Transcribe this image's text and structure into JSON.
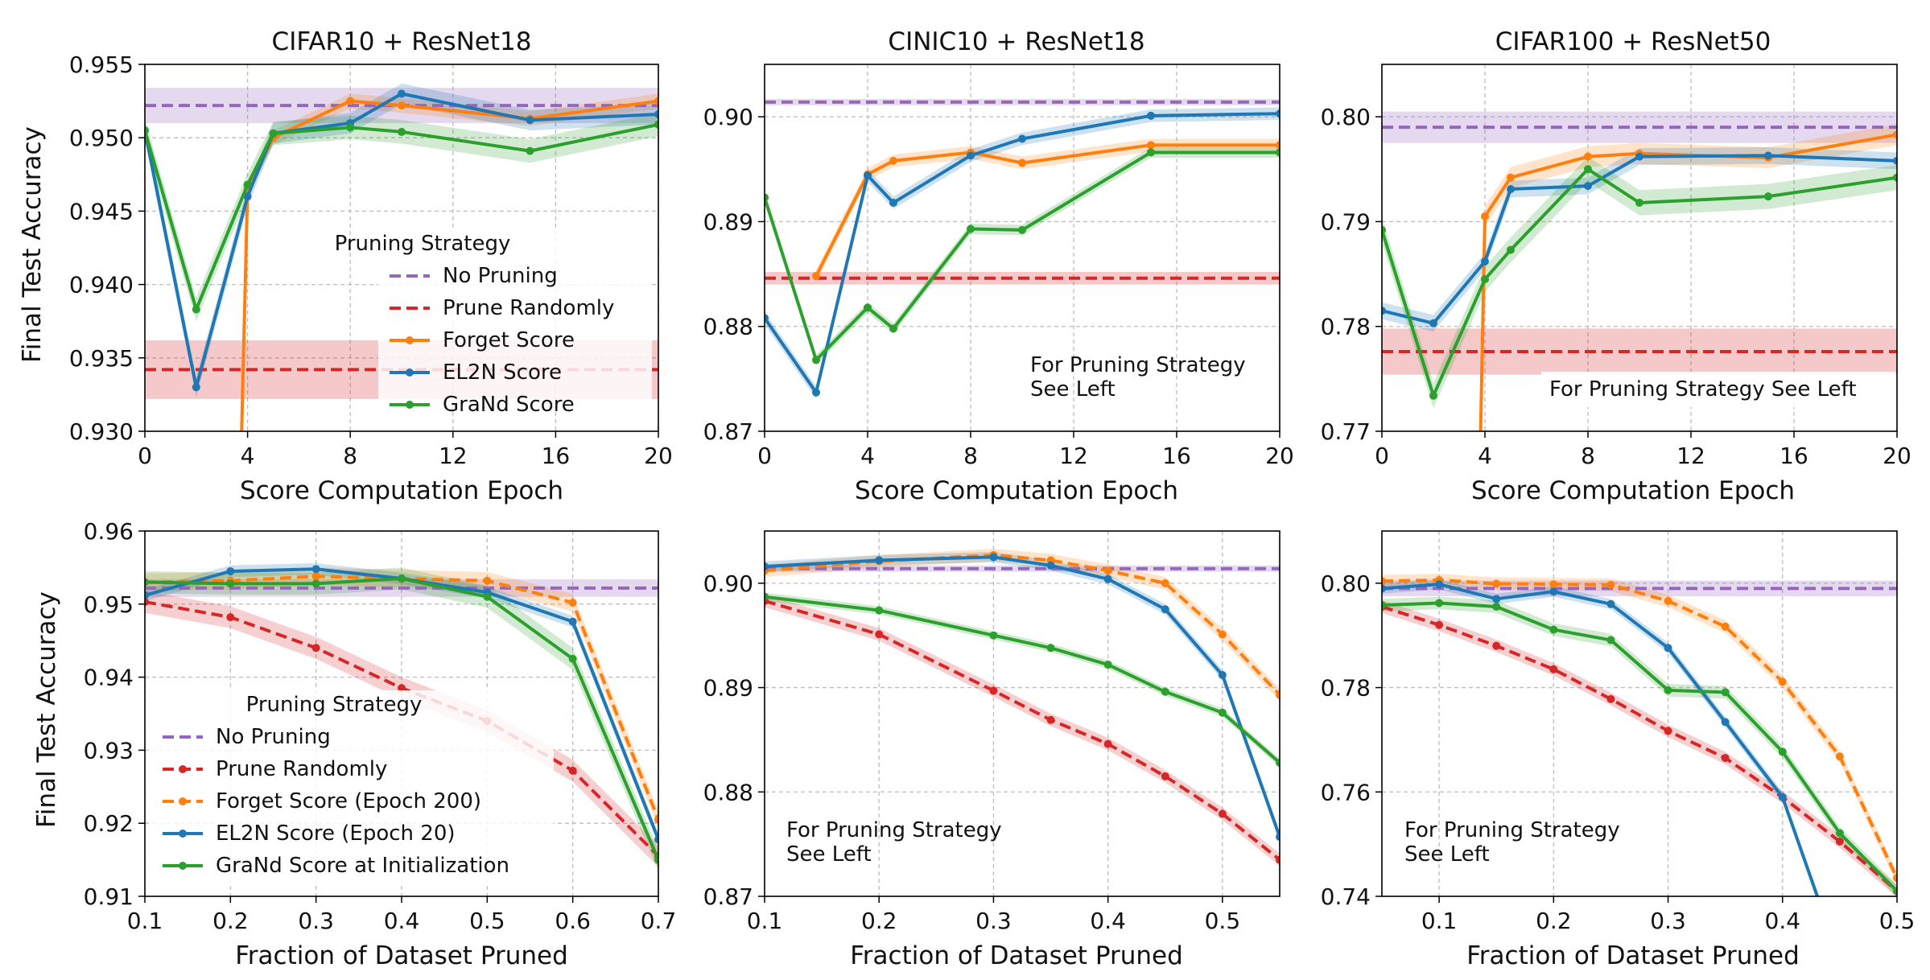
{
  "colors": {
    "No Pruning": "#9467bd",
    "Prune Randomly": "#d62728",
    "Forget Score": "#ff7f0e",
    "EL2N Score": "#1f77b4",
    "GraNd Score": "#2ca02c"
  },
  "chart_data": [
    {
      "type": "line",
      "title": "CIFAR10 + ResNet18",
      "xlabel": "Score Computation Epoch",
      "ylabel": "Final Test Accuracy",
      "xlim": [
        0,
        20
      ],
      "ylim": [
        0.93,
        0.955
      ],
      "xticks": [
        "0",
        "4",
        "8",
        "12",
        "16",
        "20"
      ],
      "yticks": [
        "0.930",
        "0.935",
        "0.940",
        "0.945",
        "0.950",
        "0.955"
      ],
      "grid": true,
      "legend": {
        "title": "Pruning Strategy",
        "placement": "center-right",
        "entries": [
          "No Pruning",
          "Prune Randomly",
          "Forget Score",
          "EL2N Score",
          "GraNd Score"
        ]
      },
      "series": [
        {
          "name": "No Pruning",
          "style": "dashed",
          "hline": 0.9522,
          "band": 0.0012
        },
        {
          "name": "Prune Randomly",
          "style": "dashed",
          "hline": 0.9342,
          "band": 0.002
        },
        {
          "name": "Forget Score",
          "style": "solid",
          "x": [
            3.7,
            4,
            5,
            8,
            10,
            15,
            20
          ],
          "y": [
            0.925,
            0.9465,
            0.95,
            0.9525,
            0.9522,
            0.9513,
            0.9525
          ],
          "band": 0.0005
        },
        {
          "name": "EL2N Score",
          "style": "solid",
          "x": [
            0,
            2,
            4,
            5,
            8,
            10,
            15,
            20
          ],
          "y": [
            0.9505,
            0.933,
            0.946,
            0.9503,
            0.951,
            0.953,
            0.9512,
            0.9516
          ],
          "band": 0.0007
        },
        {
          "name": "GraNd Score",
          "style": "solid",
          "x": [
            0,
            2,
            4,
            5,
            8,
            10,
            15,
            20
          ],
          "y": [
            0.9505,
            0.9383,
            0.9468,
            0.9503,
            0.9507,
            0.9504,
            0.9491,
            0.9509
          ],
          "band": 0.0008
        }
      ]
    },
    {
      "type": "line",
      "title": "CINIC10 + ResNet18",
      "xlabel": "Score Computation Epoch",
      "ylabel": "",
      "xlim": [
        0,
        20
      ],
      "ylim": [
        0.87,
        0.905
      ],
      "xticks": [
        "0",
        "4",
        "8",
        "12",
        "16",
        "20"
      ],
      "yticks": [
        "0.87",
        "0.88",
        "0.89",
        "0.90"
      ],
      "grid": true,
      "annotation": [
        "For Pruning Strategy",
        "See Left"
      ],
      "series": [
        {
          "name": "No Pruning",
          "style": "dashed",
          "hline": 0.9014,
          "band": 0.0003
        },
        {
          "name": "Prune Randomly",
          "style": "dashed",
          "hline": 0.8846,
          "band": 0.0006
        },
        {
          "name": "Forget Score",
          "style": "solid",
          "x": [
            2,
            4,
            5,
            8,
            10,
            15,
            20
          ],
          "y": [
            0.8848,
            0.8945,
            0.8958,
            0.8966,
            0.8956,
            0.8973,
            0.8973
          ],
          "band": 0.0006
        },
        {
          "name": "EL2N Score",
          "style": "solid",
          "x": [
            0,
            2,
            4,
            5,
            8,
            10,
            15,
            20
          ],
          "y": [
            0.8808,
            0.8737,
            0.8944,
            0.8918,
            0.8963,
            0.8979,
            0.9001,
            0.9003
          ],
          "band": 0.0006
        },
        {
          "name": "GraNd Score",
          "style": "solid",
          "x": [
            0,
            2,
            4,
            5,
            8,
            10,
            15,
            20
          ],
          "y": [
            0.8923,
            0.8768,
            0.8818,
            0.8798,
            0.8893,
            0.8892,
            0.8966,
            0.8966
          ],
          "band": 0.0005
        }
      ]
    },
    {
      "type": "line",
      "title": "CIFAR100 + ResNet50",
      "xlabel": "Score Computation Epoch",
      "ylabel": "",
      "xlim": [
        0,
        20
      ],
      "ylim": [
        0.77,
        0.805
      ],
      "xticks": [
        "0",
        "4",
        "8",
        "12",
        "16",
        "20"
      ],
      "yticks": [
        "0.77",
        "0.78",
        "0.79",
        "0.80"
      ],
      "grid": true,
      "annotation": [
        "For Pruning Strategy See Left"
      ],
      "series": [
        {
          "name": "No Pruning",
          "style": "dashed",
          "hline": 0.799,
          "band": 0.0015
        },
        {
          "name": "Prune Randomly",
          "style": "dashed",
          "hline": 0.7776,
          "band": 0.0022
        },
        {
          "name": "Forget Score",
          "style": "solid",
          "x": [
            3.8,
            4,
            5,
            8,
            10,
            15,
            20
          ],
          "y": [
            0.766,
            0.7905,
            0.7942,
            0.7962,
            0.7965,
            0.7961,
            0.7983
          ],
          "band": 0.001
        },
        {
          "name": "EL2N Score",
          "style": "solid",
          "x": [
            0,
            2,
            4,
            5,
            8,
            10,
            15,
            20
          ],
          "y": [
            0.7815,
            0.7803,
            0.7862,
            0.7931,
            0.7934,
            0.7962,
            0.7963,
            0.7958
          ],
          "band": 0.0008
        },
        {
          "name": "GraNd Score",
          "style": "solid",
          "x": [
            0,
            2,
            4,
            5,
            8,
            10,
            15,
            20
          ],
          "y": [
            0.7892,
            0.7734,
            0.7845,
            0.7873,
            0.795,
            0.7918,
            0.7924,
            0.7942
          ],
          "band": 0.0012
        }
      ]
    },
    {
      "type": "line",
      "title": "",
      "xlabel": "Fraction of Dataset Pruned",
      "ylabel": "Final Test Accuracy",
      "xlim": [
        0.1,
        0.7
      ],
      "ylim": [
        0.91,
        0.96
      ],
      "xticks": [
        "0.1",
        "0.2",
        "0.3",
        "0.4",
        "0.5",
        "0.6",
        "0.7"
      ],
      "yticks": [
        "0.91",
        "0.92",
        "0.93",
        "0.94",
        "0.95",
        "0.96"
      ],
      "grid": true,
      "legend": {
        "title": "Pruning Strategy",
        "placement": "lower-left",
        "entries": [
          "No Pruning",
          "Prune Randomly",
          "Forget Score (Epoch 200)",
          "EL2N Score (Epoch 20)",
          "GraNd Score at Initialization"
        ]
      },
      "series": [
        {
          "name": "No Pruning",
          "style": "dashed",
          "hline": 0.9522,
          "band": 0.0012
        },
        {
          "name": "Prune Randomly",
          "style": "dashed",
          "x": [
            0.1,
            0.2,
            0.3,
            0.4,
            0.5,
            0.6,
            0.7
          ],
          "y": [
            0.9503,
            0.9482,
            0.944,
            0.9385,
            0.934,
            0.9272,
            0.9155
          ],
          "band": 0.0015
        },
        {
          "name": "Forget Score",
          "style": "dashed",
          "x": [
            0.1,
            0.2,
            0.3,
            0.4,
            0.5,
            0.6,
            0.7
          ],
          "y": [
            0.953,
            0.9532,
            0.9538,
            0.9535,
            0.9532,
            0.9502,
            0.9205
          ],
          "band": 0.0012
        },
        {
          "name": "EL2N Score",
          "style": "solid",
          "x": [
            0.1,
            0.2,
            0.3,
            0.4,
            0.5,
            0.6,
            0.7
          ],
          "y": [
            0.9512,
            0.9545,
            0.9548,
            0.9535,
            0.9516,
            0.9476,
            0.9178
          ],
          "band": 0.0008
        },
        {
          "name": "GraNd Score",
          "style": "solid",
          "x": [
            0.1,
            0.2,
            0.3,
            0.4,
            0.5,
            0.6,
            0.7
          ],
          "y": [
            0.953,
            0.9528,
            0.9528,
            0.9535,
            0.951,
            0.9425,
            0.915
          ],
          "band": 0.0015
        }
      ]
    },
    {
      "type": "line",
      "title": "",
      "xlabel": "Fraction of Dataset Pruned",
      "ylabel": "",
      "xlim": [
        0.1,
        0.55
      ],
      "ylim": [
        0.87,
        0.905
      ],
      "xticks": [
        "0.1",
        "0.2",
        "0.3",
        "0.4",
        "0.5"
      ],
      "yticks": [
        "0.87",
        "0.88",
        "0.89",
        "0.90"
      ],
      "grid": true,
      "annotation": [
        "For Pruning Strategy",
        "See Left"
      ],
      "series": [
        {
          "name": "No Pruning",
          "style": "dashed",
          "hline": 0.9014,
          "band": 0.0003
        },
        {
          "name": "Prune Randomly",
          "style": "dashed",
          "x": [
            0.1,
            0.2,
            0.3,
            0.35,
            0.4,
            0.45,
            0.5,
            0.55
          ],
          "y": [
            0.8983,
            0.8951,
            0.8897,
            0.8869,
            0.8846,
            0.8815,
            0.8779,
            0.8735
          ],
          "band": 0.0006
        },
        {
          "name": "Forget Score",
          "style": "dashed",
          "x": [
            0.1,
            0.2,
            0.3,
            0.35,
            0.4,
            0.45,
            0.5,
            0.55
          ],
          "y": [
            0.9012,
            0.9021,
            0.9027,
            0.9022,
            0.9012,
            0.9,
            0.8951,
            0.8893
          ],
          "band": 0.0006
        },
        {
          "name": "EL2N Score",
          "style": "solid",
          "x": [
            0.1,
            0.2,
            0.3,
            0.35,
            0.4,
            0.45,
            0.5,
            0.55
          ],
          "y": [
            0.9016,
            0.9022,
            0.9025,
            0.9017,
            0.9004,
            0.8975,
            0.8912,
            0.8757
          ],
          "band": 0.0005
        },
        {
          "name": "GraNd Score",
          "style": "solid",
          "x": [
            0.1,
            0.2,
            0.3,
            0.35,
            0.4,
            0.45,
            0.5,
            0.55
          ],
          "y": [
            0.8987,
            0.8974,
            0.895,
            0.8938,
            0.8922,
            0.8896,
            0.8876,
            0.8828
          ],
          "band": 0.0004
        }
      ]
    },
    {
      "type": "line",
      "title": "",
      "xlabel": "Fraction of Dataset Pruned",
      "ylabel": "",
      "xlim": [
        0.05,
        0.5
      ],
      "ylim": [
        0.74,
        0.81
      ],
      "xticks": [
        "0.1",
        "0.2",
        "0.3",
        "0.4",
        "0.5"
      ],
      "yticks": [
        "0.74",
        "0.76",
        "0.78",
        "0.80"
      ],
      "grid": true,
      "annotation": [
        "For Pruning Strategy",
        "See Left"
      ],
      "series": [
        {
          "name": "No Pruning",
          "style": "dashed",
          "hline": 0.799,
          "band": 0.0015
        },
        {
          "name": "Prune Randomly",
          "style": "dashed",
          "x": [
            0.05,
            0.1,
            0.15,
            0.2,
            0.25,
            0.3,
            0.35,
            0.4,
            0.45,
            0.5
          ],
          "y": [
            0.7955,
            0.792,
            0.788,
            0.7835,
            0.7778,
            0.7717,
            0.7665,
            0.759,
            0.7505,
            0.741
          ],
          "band": 0.0012
        },
        {
          "name": "Forget Score",
          "style": "dashed",
          "x": [
            0.05,
            0.1,
            0.15,
            0.2,
            0.25,
            0.3,
            0.35,
            0.4,
            0.45,
            0.5
          ],
          "y": [
            0.8004,
            0.8006,
            0.7999,
            0.7998,
            0.7997,
            0.7966,
            0.7917,
            0.7811,
            0.7668,
            0.7435
          ],
          "band": 0.0012
        },
        {
          "name": "EL2N Score",
          "style": "solid",
          "x": [
            0.05,
            0.1,
            0.15,
            0.2,
            0.25,
            0.3,
            0.35,
            0.4,
            0.44
          ],
          "y": [
            0.799,
            0.7998,
            0.797,
            0.7984,
            0.796,
            0.7876,
            0.7734,
            0.759,
            0.734
          ],
          "band": 0.001
        },
        {
          "name": "GraNd Score",
          "style": "solid",
          "x": [
            0.05,
            0.1,
            0.15,
            0.2,
            0.25,
            0.3,
            0.35,
            0.4,
            0.45,
            0.5
          ],
          "y": [
            0.7958,
            0.7962,
            0.7955,
            0.7911,
            0.7891,
            0.7795,
            0.7791,
            0.7677,
            0.7521,
            0.741
          ],
          "band": 0.0012
        }
      ]
    }
  ]
}
